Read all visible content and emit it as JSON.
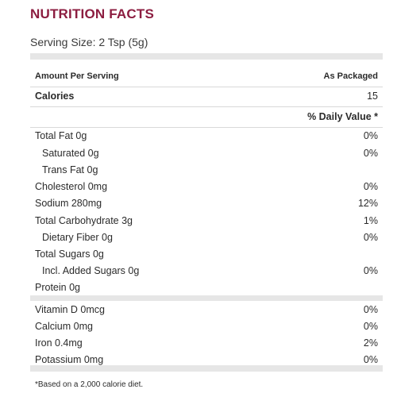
{
  "title": "NUTRITION FACTS",
  "serving_size": "Serving Size: 2 Tsp (5g)",
  "header": {
    "amount_per_serving": "Amount Per Serving",
    "as_packaged": "As Packaged"
  },
  "calories": {
    "label": "Calories",
    "value": "15"
  },
  "daily_value_header": "% Daily Value *",
  "nutrients": [
    {
      "label": "Total Fat 0g",
      "dv": "0%"
    },
    {
      "label": "Saturated 0g",
      "dv": "0%"
    },
    {
      "label": "Trans Fat 0g",
      "dv": ""
    },
    {
      "label": "Cholesterol 0mg",
      "dv": "0%"
    },
    {
      "label": "Sodium 280mg",
      "dv": "12%"
    },
    {
      "label": "Total Carbohydrate 3g",
      "dv": "1%"
    },
    {
      "label": "Dietary Fiber 0g",
      "dv": "0%"
    },
    {
      "label": "Total Sugars 0g",
      "dv": ""
    },
    {
      "label": "Incl. Added Sugars 0g",
      "dv": "0%"
    },
    {
      "label": "Protein 0g",
      "dv": ""
    }
  ],
  "vitamins": [
    {
      "label": "Vitamin D 0mcg",
      "dv": "0%"
    },
    {
      "label": "Calcium 0mg",
      "dv": "0%"
    },
    {
      "label": "Iron 0.4mg",
      "dv": "2%"
    },
    {
      "label": "Potassium 0mg",
      "dv": "0%"
    }
  ],
  "footnote": "*Based on a 2,000 calorie diet.",
  "colors": {
    "title": "#8c1d40",
    "divider": "#e6e6e6"
  }
}
